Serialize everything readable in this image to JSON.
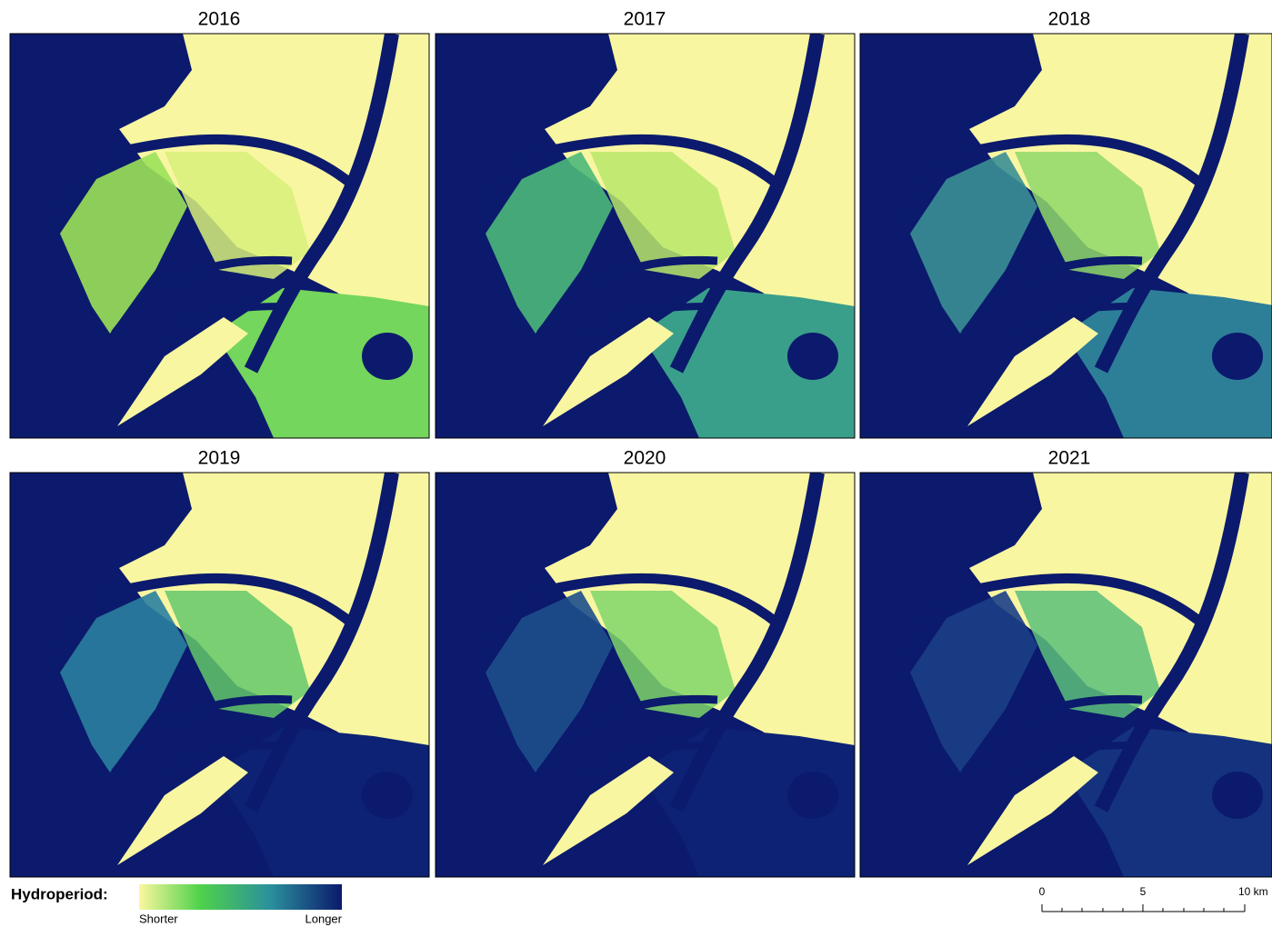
{
  "panels": [
    {
      "title": "2016"
    },
    {
      "title": "2017"
    },
    {
      "title": "2018"
    },
    {
      "title": "2019"
    },
    {
      "title": "2020"
    },
    {
      "title": "2021"
    }
  ],
  "legend": {
    "title": "Hydroperiod:",
    "low": "Shorter",
    "high": "Longer"
  },
  "scale_bar": {
    "labels": [
      "0",
      "5",
      "10 km"
    ]
  }
}
